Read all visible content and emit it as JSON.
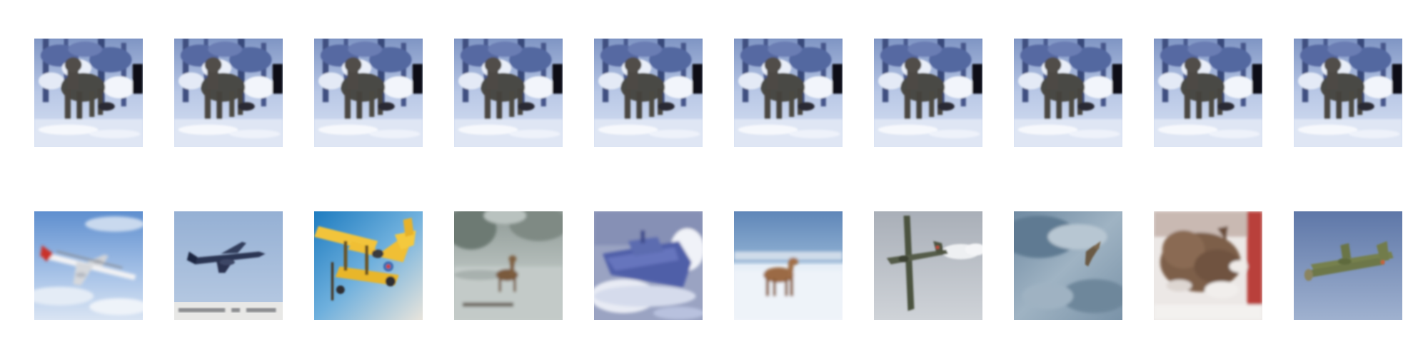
{
  "figure": {
    "rows": 2,
    "columns": 10,
    "query_row": {
      "tiles": [
        {
          "subject": "deer-in-snow"
        },
        {
          "subject": "deer-in-snow"
        },
        {
          "subject": "deer-in-snow"
        },
        {
          "subject": "deer-in-snow"
        },
        {
          "subject": "deer-in-snow"
        },
        {
          "subject": "deer-in-snow"
        },
        {
          "subject": "deer-in-snow"
        },
        {
          "subject": "deer-in-snow"
        },
        {
          "subject": "deer-in-snow"
        },
        {
          "subject": "deer-in-snow"
        }
      ]
    },
    "result_row": {
      "tiles": [
        {
          "subject": "airliner"
        },
        {
          "subject": "jet-aircraft"
        },
        {
          "subject": "yellow-biplane"
        },
        {
          "subject": "deer-in-snow"
        },
        {
          "subject": "boat"
        },
        {
          "subject": "deer-on-snowfield"
        },
        {
          "subject": "propeller-plane"
        },
        {
          "subject": "bird-in-sky"
        },
        {
          "subject": "cat"
        },
        {
          "subject": "green-warplane"
        }
      ]
    }
  }
}
